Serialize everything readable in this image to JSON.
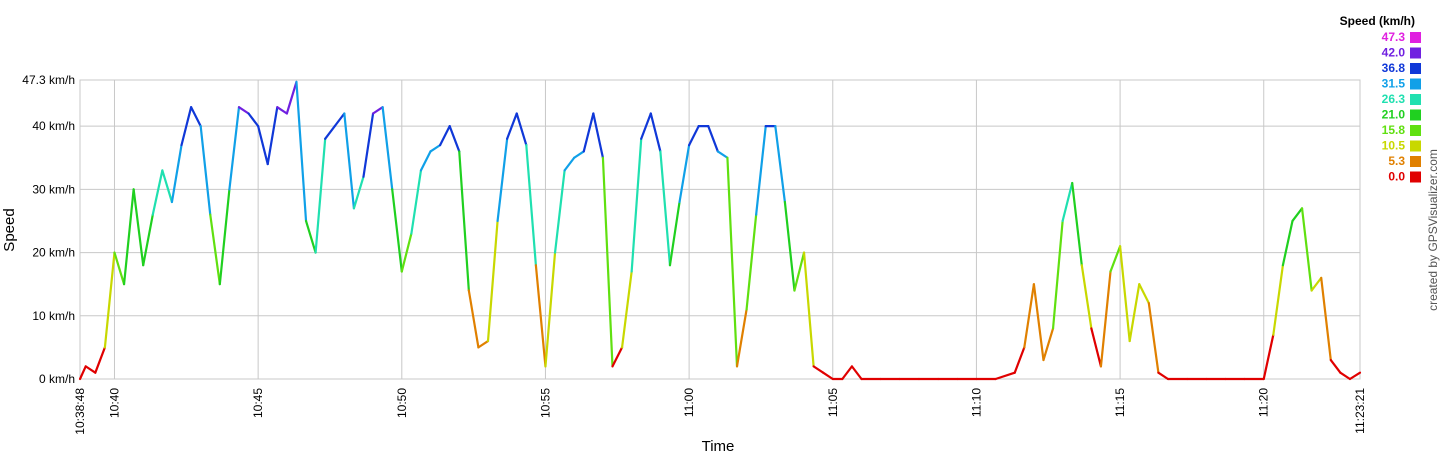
{
  "chart_data": {
    "type": "line",
    "x_label": "Time",
    "y_label": "Speed",
    "credit": "created by GPSVisualizer.com",
    "xlim": [
      "10:38:48",
      "11:23:21"
    ],
    "xticks": [
      "10:38:48",
      "10:40",
      "10:45",
      "10:50",
      "10:55",
      "11:00",
      "11:05",
      "11:10",
      "11:15",
      "11:20",
      "11:23:21"
    ],
    "ylim": [
      0,
      47.3
    ],
    "yticks": [
      {
        "value": 0,
        "label": "0 km/h"
      },
      {
        "value": 10,
        "label": "10 km/h"
      },
      {
        "value": 20,
        "label": "20 km/h"
      },
      {
        "value": 30,
        "label": "30 km/h"
      },
      {
        "value": 40,
        "label": "40 km/h"
      },
      {
        "value": 47.3,
        "label": "47.3 km/h"
      }
    ],
    "grid": true,
    "x": [
      "10:38:48",
      "10:39:00",
      "10:39:20",
      "10:39:40",
      "10:40:00",
      "10:40:20",
      "10:40:40",
      "10:41:00",
      "10:41:20",
      "10:41:40",
      "10:42:00",
      "10:42:20",
      "10:42:40",
      "10:43:00",
      "10:43:20",
      "10:43:40",
      "10:44:00",
      "10:44:20",
      "10:44:40",
      "10:45:00",
      "10:45:20",
      "10:45:40",
      "10:46:00",
      "10:46:20",
      "10:46:40",
      "10:47:00",
      "10:47:20",
      "10:47:40",
      "10:48:00",
      "10:48:20",
      "10:48:40",
      "10:49:00",
      "10:49:20",
      "10:49:40",
      "10:50:00",
      "10:50:20",
      "10:50:40",
      "10:51:00",
      "10:51:20",
      "10:51:40",
      "10:52:00",
      "10:52:20",
      "10:52:40",
      "10:53:00",
      "10:53:20",
      "10:53:40",
      "10:54:00",
      "10:54:20",
      "10:54:40",
      "10:55:00",
      "10:55:20",
      "10:55:40",
      "10:56:00",
      "10:56:20",
      "10:56:40",
      "10:57:00",
      "10:57:20",
      "10:57:40",
      "10:58:00",
      "10:58:20",
      "10:58:40",
      "10:59:00",
      "10:59:20",
      "10:59:40",
      "11:00:00",
      "11:00:20",
      "11:00:40",
      "11:01:00",
      "11:01:20",
      "11:01:40",
      "11:02:00",
      "11:02:20",
      "11:02:40",
      "11:03:00",
      "11:03:20",
      "11:03:40",
      "11:04:00",
      "11:04:20",
      "11:04:40",
      "11:05:00",
      "11:05:20",
      "11:05:40",
      "11:06:00",
      "11:06:40",
      "11:07:20",
      "11:08:00",
      "11:08:40",
      "11:09:20",
      "11:10:00",
      "11:10:40",
      "11:11:20",
      "11:11:40",
      "11:12:00",
      "11:12:20",
      "11:12:40",
      "11:13:00",
      "11:13:20",
      "11:13:40",
      "11:14:00",
      "11:14:20",
      "11:14:40",
      "11:15:00",
      "11:15:20",
      "11:15:40",
      "11:16:00",
      "11:16:20",
      "11:16:40",
      "11:17:20",
      "11:18:00",
      "11:18:40",
      "11:19:20",
      "11:20:00",
      "11:20:20",
      "11:20:40",
      "11:21:00",
      "11:21:20",
      "11:21:40",
      "11:22:00",
      "11:22:20",
      "11:22:40",
      "11:23:00",
      "11:23:21"
    ],
    "values": [
      0,
      2,
      1,
      5,
      20,
      15,
      30,
      18,
      26,
      33,
      28,
      37,
      43,
      40,
      26,
      15,
      30,
      43,
      42,
      40,
      34,
      43,
      42,
      47,
      25,
      20,
      38,
      40,
      42,
      27,
      32,
      42,
      43,
      30,
      17,
      23,
      33,
      36,
      37,
      40,
      36,
      14,
      5,
      6,
      25,
      38,
      42,
      37,
      18,
      2,
      20,
      33,
      35,
      36,
      42,
      35,
      2,
      5,
      17,
      38,
      42,
      36,
      18,
      28,
      37,
      40,
      40,
      36,
      35,
      2,
      11,
      26,
      40,
      40,
      28,
      14,
      20,
      2,
      1,
      0,
      0,
      2,
      0,
      0,
      0,
      0,
      0,
      0,
      0,
      0,
      1,
      5,
      15,
      3,
      8,
      25,
      31,
      18,
      8,
      2,
      17,
      21,
      6,
      15,
      12,
      1,
      0,
      0,
      0,
      0,
      0,
      0,
      7,
      18,
      25,
      27,
      14,
      16,
      3,
      1,
      0,
      1
    ],
    "color_scale": {
      "title": "Speed (km/h)",
      "values": [
        47.3,
        42,
        36.8,
        31.5,
        26.3,
        21,
        15.8,
        10.5,
        5.3,
        0
      ],
      "value_labels": [
        "47.3",
        "42.0",
        "36.8",
        "31.5",
        "26.3",
        "21.0",
        "15.8",
        "10.5",
        "5.3",
        "0.0"
      ],
      "colors": [
        "#e020e0",
        "#7020e0",
        "#1038d8",
        "#10a0e8",
        "#20e0b0",
        "#20d020",
        "#60e010",
        "#c8d800",
        "#e08000",
        "#e00000"
      ]
    }
  }
}
